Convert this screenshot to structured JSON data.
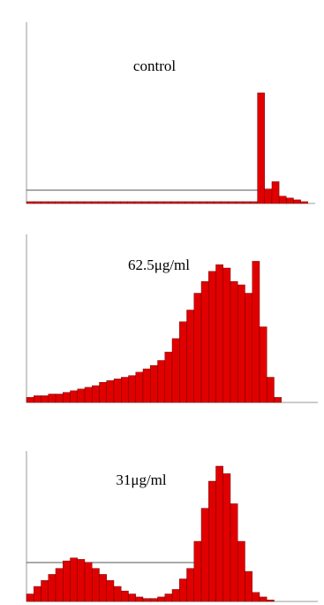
{
  "chart_data": [
    {
      "type": "histogram",
      "title": "control",
      "color": "#e00000",
      "ylim": [
        0,
        100
      ],
      "bins": [
        0,
        1,
        2,
        3,
        4,
        5,
        6,
        7,
        8,
        9,
        10,
        11,
        12,
        13,
        14,
        15,
        16,
        17,
        18,
        19,
        20,
        21,
        22,
        23,
        24,
        25,
        26,
        27,
        28,
        29,
        30,
        31,
        32,
        33,
        34,
        35,
        36,
        37,
        38,
        39,
        40
      ],
      "values": [
        1,
        1,
        1,
        1,
        1,
        1,
        1,
        1,
        1,
        1,
        1,
        1,
        1,
        1,
        1,
        1,
        1,
        1,
        1,
        1,
        1,
        1,
        1,
        1,
        1,
        1,
        1,
        1,
        1,
        1,
        1,
        1,
        61,
        8,
        12,
        4,
        3,
        2,
        1,
        0
      ]
    },
    {
      "type": "histogram",
      "title": "62.5μg/ml",
      "color": "#e00000",
      "ylim": [
        0,
        100
      ],
      "bins": [
        0,
        1,
        2,
        3,
        4,
        5,
        6,
        7,
        8,
        9,
        10,
        11,
        12,
        13,
        14,
        15,
        16,
        17,
        18,
        19,
        20,
        21,
        22,
        23,
        24,
        25,
        26,
        27,
        28,
        29,
        30,
        31,
        32,
        33,
        34,
        35,
        36,
        37,
        38,
        39,
        40
      ],
      "values": [
        3,
        4,
        4,
        5,
        5,
        6,
        7,
        8,
        9,
        10,
        12,
        13,
        14,
        15,
        16,
        18,
        20,
        22,
        25,
        30,
        38,
        48,
        55,
        65,
        72,
        78,
        82,
        80,
        72,
        70,
        65,
        84,
        45,
        15,
        3,
        0,
        0,
        0,
        0,
        0
      ]
    },
    {
      "type": "histogram",
      "title": "31μg/ml",
      "color": "#e00000",
      "ylim": [
        0,
        100
      ],
      "bins": [
        0,
        1,
        2,
        3,
        4,
        5,
        6,
        7,
        8,
        9,
        10,
        11,
        12,
        13,
        14,
        15,
        16,
        17,
        18,
        19,
        20,
        21,
        22,
        23,
        24,
        25,
        26,
        27,
        28,
        29,
        30,
        31,
        32,
        33,
        34,
        35,
        36,
        37,
        38,
        39,
        40
      ],
      "values": [
        5,
        10,
        14,
        18,
        22,
        27,
        29,
        28,
        26,
        22,
        18,
        14,
        10,
        7,
        5,
        3,
        2,
        2,
        3,
        5,
        8,
        15,
        22,
        40,
        62,
        80,
        90,
        85,
        65,
        40,
        20,
        6,
        3,
        1,
        0,
        0,
        0,
        0,
        0,
        0
      ]
    }
  ]
}
